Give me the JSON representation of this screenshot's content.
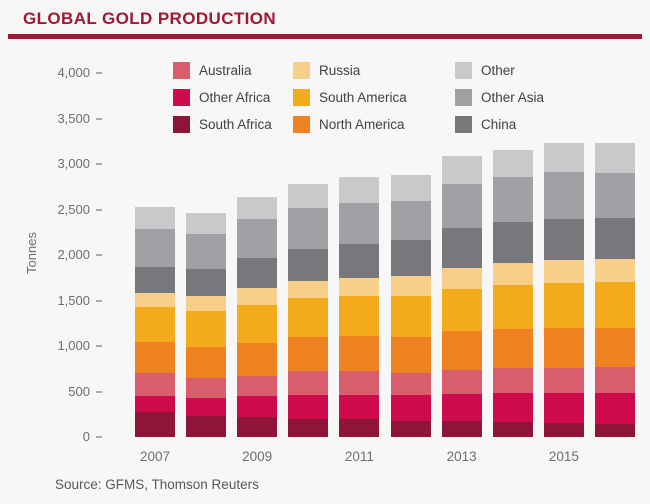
{
  "header": {
    "title": "GLOBAL GOLD PRODUCTION"
  },
  "footer": {
    "source": "Source: GFMS, Thomson Reuters"
  },
  "colors": {
    "accent": "#9e1838",
    "axis_text": "#6d6e71",
    "legend_text": "#414143",
    "tick": "#a7a9ac",
    "background": "#f7f7f7"
  },
  "chart_data": {
    "type": "bar",
    "stacked": true,
    "title": "GLOBAL GOLD PRODUCTION",
    "xlabel": "",
    "ylabel": "Tonnes",
    "ylim": [
      0,
      4000
    ],
    "ytick_step": 500,
    "ytick_labels": [
      "0",
      "500",
      "1,000",
      "1,500",
      "2,000",
      "2,500",
      "3,000",
      "3,500",
      "4,000"
    ],
    "categories": [
      "2007",
      "2008",
      "2009",
      "2010",
      "2011",
      "2012",
      "2013",
      "2014",
      "2015",
      "2016"
    ],
    "xtick_shown": [
      "2007",
      "2009",
      "2011",
      "2013",
      "2015"
    ],
    "grid": false,
    "legend_position": "top",
    "legend_columns": [
      [
        "Australia",
        "Other Africa",
        "South Africa"
      ],
      [
        "Russia",
        "South America",
        "North America"
      ],
      [
        "Other",
        "Other Asia",
        "China"
      ]
    ],
    "series": [
      {
        "name": "South Africa",
        "color": "#8e1537",
        "values": [
          270,
          233,
          220,
          203,
          197,
          177,
          177,
          164,
          151,
          142
        ]
      },
      {
        "name": "Other Africa",
        "color": "#d00b4d",
        "values": [
          185,
          200,
          230,
          260,
          270,
          280,
          300,
          320,
          330,
          340
        ]
      },
      {
        "name": "Australia",
        "color": "#d95d6d",
        "values": [
          246,
          215,
          224,
          261,
          258,
          250,
          265,
          274,
          279,
          288
        ]
      },
      {
        "name": "North America",
        "color": "#ef8220",
        "values": [
          345,
          340,
          360,
          370,
          380,
          390,
          420,
          430,
          440,
          430
        ]
      },
      {
        "name": "South America",
        "color": "#f3ab1d",
        "values": [
          380,
          400,
          420,
          430,
          440,
          450,
          470,
          480,
          490,
          500
        ]
      },
      {
        "name": "Russia",
        "color": "#f7ce8a",
        "values": [
          157,
          165,
          185,
          189,
          200,
          218,
          230,
          247,
          252,
          253
        ]
      },
      {
        "name": "China",
        "color": "#77787b",
        "values": [
          280,
          292,
          324,
          351,
          371,
          403,
          438,
          452,
          450,
          455
        ]
      },
      {
        "name": "Other Asia",
        "color": "#9fa1a4",
        "values": [
          420,
          390,
          430,
          450,
          460,
          430,
          480,
          490,
          520,
          500
        ]
      },
      {
        "name": "Other",
        "color": "#c7c9cb",
        "values": [
          240,
          230,
          250,
          270,
          280,
          280,
          310,
          300,
          320,
          330
        ]
      }
    ]
  }
}
